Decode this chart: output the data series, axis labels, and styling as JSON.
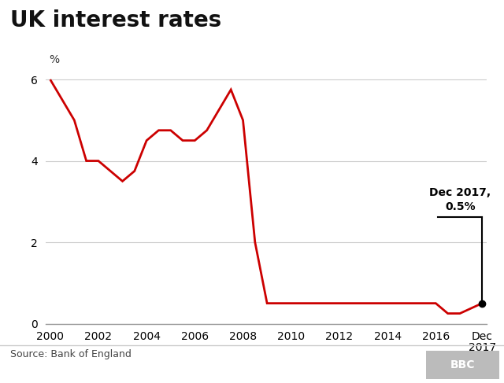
{
  "title": "UK interest rates",
  "source_text": "Source: Bank of England",
  "bbc_text": "BBC",
  "ylabel": "%",
  "line_color": "#cc0000",
  "annotation_text": "Dec 2017,\n0.5%",
  "annotation_line_color": "#000000",
  "dot_color": "#000000",
  "background_color": "#ffffff",
  "grid_color": "#cccccc",
  "bbc_box_color": "#bbbbbb",
  "separator_color": "#cccccc",
  "ylim": [
    0,
    6.4
  ],
  "yticks": [
    0,
    2,
    4,
    6
  ],
  "xlim": [
    1999.8,
    2018.1
  ],
  "xtick_labels": [
    "2000",
    "2002",
    "2004",
    "2006",
    "2008",
    "2010",
    "2012",
    "2014",
    "2016",
    "Dec\n2017"
  ],
  "xtick_positions": [
    2000,
    2002,
    2004,
    2006,
    2008,
    2010,
    2012,
    2014,
    2016,
    2017.92
  ],
  "data_x": [
    2000.0,
    2001.0,
    2001.5,
    2002.0,
    2002.5,
    2003.0,
    2003.5,
    2004.0,
    2004.5,
    2005.0,
    2005.5,
    2006.0,
    2006.5,
    2007.0,
    2007.5,
    2008.0,
    2008.5,
    2009.0,
    2009.5,
    2010.0,
    2011.0,
    2012.0,
    2013.0,
    2014.0,
    2015.0,
    2016.0,
    2016.5,
    2016.75,
    2017.0,
    2017.92
  ],
  "data_y": [
    6.0,
    5.0,
    4.0,
    4.0,
    3.75,
    3.5,
    3.75,
    4.5,
    4.75,
    4.75,
    4.5,
    4.5,
    4.75,
    5.25,
    5.75,
    5.0,
    2.0,
    0.5,
    0.5,
    0.5,
    0.5,
    0.5,
    0.5,
    0.5,
    0.5,
    0.5,
    0.25,
    0.25,
    0.25,
    0.5
  ],
  "ann_y_line": 2.62,
  "ann_x_start": 2016.1,
  "title_fontsize": 20,
  "axis_fontsize": 10,
  "source_fontsize": 9
}
